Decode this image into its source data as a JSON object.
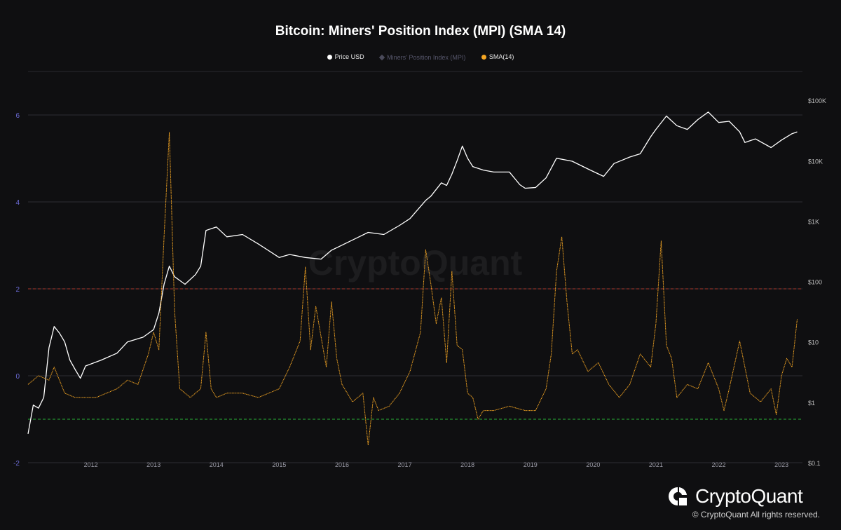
{
  "title": "Bitcoin: Miners' Position Index (MPI) (SMA 14)",
  "legend": [
    {
      "label": "Price USD",
      "color": "#ffffff",
      "marker": "dot",
      "active": true
    },
    {
      "label": "Miners' Position Index (MPI)",
      "color": "#4a4a5a",
      "marker": "diamond",
      "active": false
    },
    {
      "label": "SMA(14)",
      "color": "#f5a623",
      "marker": "dot",
      "active": true
    }
  ],
  "watermark": "CryptoQuant",
  "brand": "CryptoQuant",
  "copyright": "© CryptoQuant All rights reserved.",
  "colors": {
    "background": "#0f0f11",
    "price": "#ffffff",
    "sma": "#f5a623",
    "upper_threshold": "#c0392b",
    "lower_threshold": "#2ecc40",
    "left_axis_text": "#6b6bd6"
  },
  "chart_data": {
    "type": "line",
    "title": "Bitcoin: Miners' Position Index (MPI) (SMA 14)",
    "x_ticks": [
      "2012",
      "2013",
      "2014",
      "2015",
      "2016",
      "2017",
      "2018",
      "2019",
      "2020",
      "2021",
      "2022",
      "2023"
    ],
    "xlim": [
      "2011-01",
      "2023-04"
    ],
    "left_axis": {
      "label": "",
      "ticks": [
        "-2",
        "0",
        "2",
        "4",
        "6"
      ],
      "ylim": [
        -2,
        7
      ]
    },
    "right_axis": {
      "label": "",
      "scale": "log",
      "ticks": [
        "$0.1",
        "$1",
        "$10",
        "$100",
        "$1K",
        "$10K",
        "$100K"
      ],
      "ylim": [
        0.1,
        300000
      ]
    },
    "reference_lines": [
      {
        "value": 2,
        "axis": "left",
        "color": "#c0392b",
        "style": "dashed"
      },
      {
        "value": -1,
        "axis": "left",
        "color": "#2ecc40",
        "style": "dashed"
      }
    ],
    "grid": true,
    "legend_position": "top-center",
    "series": [
      {
        "name": "Price USD",
        "axis": "right",
        "color": "#ffffff",
        "x": [
          "2011-01",
          "2011-02",
          "2011-03",
          "2011-04",
          "2011-05",
          "2011-06",
          "2011-07",
          "2011-08",
          "2011-09",
          "2011-10",
          "2011-11",
          "2011-12",
          "2012-03",
          "2012-06",
          "2012-08",
          "2012-11",
          "2013-01",
          "2013-02",
          "2013-03",
          "2013-04",
          "2013-05",
          "2013-07",
          "2013-09",
          "2013-10",
          "2013-11",
          "2013-12",
          "2014-01",
          "2014-03",
          "2014-06",
          "2014-09",
          "2015-01",
          "2015-03",
          "2015-06",
          "2015-09",
          "2015-11",
          "2016-01",
          "2016-06",
          "2016-09",
          "2016-12",
          "2017-02",
          "2017-05",
          "2017-06",
          "2017-08",
          "2017-09",
          "2017-10",
          "2017-11",
          "2017-12",
          "2018-01",
          "2018-02",
          "2018-04",
          "2018-06",
          "2018-09",
          "2018-11",
          "2018-12",
          "2019-02",
          "2019-04",
          "2019-06",
          "2019-09",
          "2019-12",
          "2020-03",
          "2020-05",
          "2020-08",
          "2020-10",
          "2020-12",
          "2021-01",
          "2021-03",
          "2021-05",
          "2021-07",
          "2021-09",
          "2021-11",
          "2022-01",
          "2022-03",
          "2022-05",
          "2022-06",
          "2022-08",
          "2022-11",
          "2023-01",
          "2023-03",
          "2023-04"
        ],
        "values": [
          0.3,
          0.9,
          0.8,
          1.2,
          8,
          18,
          14,
          10,
          5,
          3.5,
          2.5,
          4,
          5,
          6.5,
          10,
          12,
          16,
          30,
          90,
          180,
          120,
          90,
          130,
          180,
          700,
          750,
          800,
          550,
          600,
          420,
          250,
          280,
          250,
          235,
          330,
          400,
          650,
          600,
          850,
          1100,
          2200,
          2600,
          4300,
          3900,
          6000,
          10000,
          17500,
          11000,
          8000,
          7000,
          6500,
          6500,
          4000,
          3500,
          3600,
          5200,
          11000,
          9800,
          7300,
          5500,
          9000,
          11500,
          13000,
          25000,
          33000,
          55000,
          38000,
          33000,
          48000,
          64000,
          43000,
          45000,
          30000,
          20000,
          23000,
          16500,
          22000,
          28000,
          30000
        ]
      },
      {
        "name": "SMA(14)",
        "axis": "left",
        "color": "#f5a623",
        "x": [
          "2011-01",
          "2011-03",
          "2011-05",
          "2011-06",
          "2011-08",
          "2011-10",
          "2011-12",
          "2012-02",
          "2012-04",
          "2012-06",
          "2012-08",
          "2012-10",
          "2012-12",
          "2013-01",
          "2013-02",
          "2013-03",
          "2013-04",
          "2013-05",
          "2013-06",
          "2013-08",
          "2013-10",
          "2013-11",
          "2013-12",
          "2014-01",
          "2014-03",
          "2014-06",
          "2014-09",
          "2015-01",
          "2015-03",
          "2015-05",
          "2015-06",
          "2015-07",
          "2015-08",
          "2015-09",
          "2015-10",
          "2015-11",
          "2015-12",
          "2016-01",
          "2016-03",
          "2016-05",
          "2016-06",
          "2016-07",
          "2016-08",
          "2016-10",
          "2016-12",
          "2017-02",
          "2017-04",
          "2017-05",
          "2017-06",
          "2017-07",
          "2017-08",
          "2017-09",
          "2017-10",
          "2017-11",
          "2017-12",
          "2018-01",
          "2018-02",
          "2018-03",
          "2018-04",
          "2018-06",
          "2018-09",
          "2018-12",
          "2019-02",
          "2019-04",
          "2019-05",
          "2019-06",
          "2019-07",
          "2019-08",
          "2019-09",
          "2019-10",
          "2019-12",
          "2020-02",
          "2020-04",
          "2020-06",
          "2020-08",
          "2020-10",
          "2020-12",
          "2021-01",
          "2021-02",
          "2021-03",
          "2021-04",
          "2021-05",
          "2021-07",
          "2021-09",
          "2021-11",
          "2022-01",
          "2022-02",
          "2022-03",
          "2022-05",
          "2022-07",
          "2022-09",
          "2022-11",
          "2022-12",
          "2023-01",
          "2023-02",
          "2023-03",
          "2023-04"
        ],
        "values": [
          -0.2,
          0,
          -0.1,
          0.2,
          -0.4,
          -0.5,
          -0.5,
          -0.5,
          -0.4,
          -0.3,
          -0.1,
          -0.2,
          0.5,
          1.0,
          0.6,
          3.2,
          5.6,
          1.5,
          -0.3,
          -0.5,
          -0.3,
          1.0,
          -0.3,
          -0.5,
          -0.4,
          -0.4,
          -0.5,
          -0.3,
          0.2,
          0.8,
          2.5,
          0.6,
          1.6,
          0.9,
          0.2,
          1.7,
          0.4,
          -0.2,
          -0.6,
          -0.4,
          -1.6,
          -0.5,
          -0.8,
          -0.7,
          -0.4,
          0.1,
          1.0,
          2.9,
          2.1,
          1.2,
          1.8,
          0.3,
          2.4,
          0.7,
          0.6,
          -0.4,
          -0.5,
          -1.0,
          -0.8,
          -0.8,
          -0.7,
          -0.8,
          -0.8,
          -0.3,
          0.5,
          2.4,
          3.2,
          1.7,
          0.5,
          0.6,
          0.1,
          0.3,
          -0.2,
          -0.5,
          -0.2,
          0.5,
          0.2,
          1.2,
          3.1,
          0.7,
          0.4,
          -0.5,
          -0.2,
          -0.3,
          0.3,
          -0.3,
          -0.8,
          -0.3,
          0.8,
          -0.4,
          -0.6,
          -0.3,
          -0.9,
          0.0,
          0.4,
          0.2,
          1.3
        ]
      }
    ]
  }
}
